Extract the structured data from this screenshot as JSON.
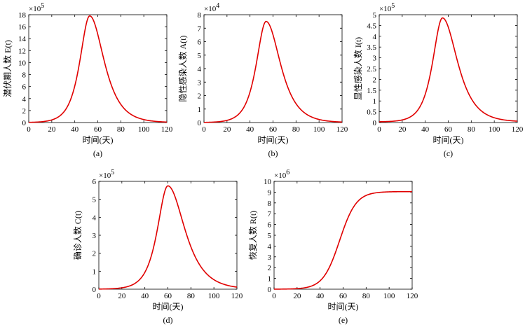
{
  "figure": {
    "panels": [
      "a",
      "b",
      "c",
      "d",
      "e"
    ]
  },
  "chart_data": [
    {
      "id": "a",
      "type": "line",
      "caption": "(a)",
      "xlabel": "时间(天)",
      "ylabel": "潜伏期人数  E(t)",
      "multiplier": "×10",
      "multiplier_exp": "5",
      "xlim": [
        0,
        120
      ],
      "ylim": [
        0,
        18
      ],
      "xticks": [
        0,
        20,
        40,
        60,
        80,
        100,
        120
      ],
      "yticks": [
        0,
        2,
        4,
        6,
        8,
        10,
        12,
        14,
        16,
        18
      ],
      "line_color": "#e00000",
      "curve": "peak",
      "peak_x": 53,
      "peak_y": 17.8,
      "rise_width": 7.5,
      "fall_width": 11,
      "base_y": 0
    },
    {
      "id": "b",
      "type": "line",
      "caption": "(b)",
      "xlabel": "时间(天)",
      "ylabel": "隐性感染人数  A(t)",
      "multiplier": "×10",
      "multiplier_exp": "4",
      "xlim": [
        0,
        120
      ],
      "ylim": [
        0,
        8
      ],
      "xticks": [
        0,
        20,
        40,
        60,
        80,
        100,
        120
      ],
      "yticks": [
        0,
        1,
        2,
        3,
        4,
        5,
        6,
        7,
        8
      ],
      "line_color": "#e00000",
      "curve": "peak",
      "peak_x": 54,
      "peak_y": 7.5,
      "rise_width": 7.5,
      "fall_width": 11,
      "base_y": 0
    },
    {
      "id": "c",
      "type": "line",
      "caption": "(c)",
      "xlabel": "时间(天)",
      "ylabel": "显性感染人数  I(t)",
      "multiplier": "×10",
      "multiplier_exp": "5",
      "xlim": [
        0,
        120
      ],
      "ylim": [
        0,
        5
      ],
      "xticks": [
        0,
        20,
        40,
        60,
        80,
        100,
        120
      ],
      "yticks": [
        0,
        0.5,
        1,
        1.5,
        2,
        2.5,
        3,
        3.5,
        4,
        4.5,
        5
      ],
      "line_color": "#e00000",
      "curve": "peak",
      "peak_x": 55,
      "peak_y": 4.85,
      "rise_width": 7.5,
      "fall_width": 11.5,
      "base_y": 0.03
    },
    {
      "id": "d",
      "type": "line",
      "caption": "(d)",
      "xlabel": "时间(天)",
      "ylabel": "确诊人数  C(t)",
      "multiplier": "×10",
      "multiplier_exp": "5",
      "xlim": [
        0,
        120
      ],
      "ylim": [
        0,
        6
      ],
      "xticks": [
        0,
        20,
        40,
        60,
        80,
        100,
        120
      ],
      "yticks": [
        0,
        1,
        2,
        3,
        4,
        5,
        6
      ],
      "line_color": "#e00000",
      "curve": "peak",
      "peak_x": 60,
      "peak_y": 5.75,
      "rise_width": 8,
      "fall_width": 13,
      "base_y": 0
    },
    {
      "id": "e",
      "type": "line",
      "caption": "(e)",
      "xlabel": "时间(天)",
      "ylabel": "恢复人数  R(t)",
      "multiplier": "×10",
      "multiplier_exp": "6",
      "xlim": [
        0,
        120
      ],
      "ylim": [
        0,
        10
      ],
      "xticks": [
        0,
        20,
        40,
        60,
        80,
        100,
        120
      ],
      "yticks": [
        0,
        1,
        2,
        3,
        4,
        5,
        6,
        7,
        8,
        9,
        10
      ],
      "line_color": "#e00000",
      "curve": "sigmoid",
      "mid_x": 57,
      "asymptote": 9.05,
      "scale": 7.2
    }
  ]
}
